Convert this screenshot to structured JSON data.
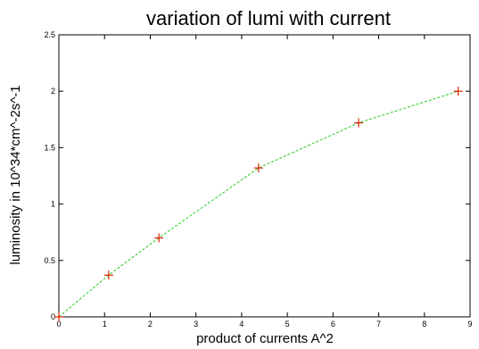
{
  "chart_data": {
    "type": "line",
    "title": "variation of lumi with current",
    "xlabel": "product of currents A^2",
    "ylabel": "luminosity in 10^34*cm^-2s^-1",
    "xlim": [
      0,
      9
    ],
    "ylim": [
      0,
      2.5
    ],
    "x_ticks": [
      "0",
      "1",
      "2",
      "3",
      "4",
      "5",
      "6",
      "7",
      "8",
      "9"
    ],
    "y_ticks": [
      "0",
      "0.5",
      "1",
      "1.5",
      "2",
      "2.5"
    ],
    "grid": false,
    "series": [
      {
        "x": [
          0,
          1.09,
          2.19,
          4.37,
          6.56,
          8.74
        ],
        "y": [
          0,
          0.37,
          0.7,
          1.32,
          1.72,
          2.0
        ]
      }
    ],
    "colors": {
      "line": "#22cc22",
      "marker": "#dd2200",
      "axis": "#000000"
    }
  }
}
